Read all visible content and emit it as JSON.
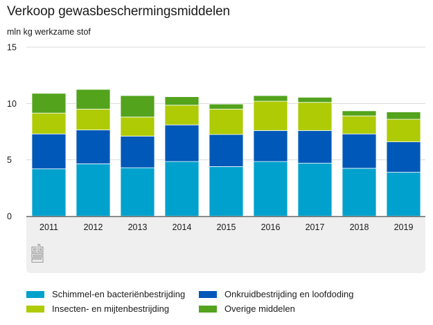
{
  "chart_data": {
    "type": "bar",
    "stacked": true,
    "title": "Verkoop gewasbeschermingsmiddelen",
    "ylabel": "mln kg werkzame stof",
    "xlabel": "",
    "ylim": [
      0,
      15
    ],
    "yticks": [
      0,
      5,
      10,
      15
    ],
    "grid": true,
    "legend_position": "bottom",
    "categories": [
      "2011",
      "2012",
      "2013",
      "2014",
      "2015",
      "2016",
      "2017",
      "2018",
      "2019"
    ],
    "series": [
      {
        "name": "Schimmel-en bacteriënbestrijding",
        "color": "#00a1cd",
        "values": [
          4.2,
          4.65,
          4.3,
          4.85,
          4.4,
          4.85,
          4.7,
          4.25,
          3.9
        ]
      },
      {
        "name": "Onkruidbestrijding en loofdoding",
        "color": "#0058b8",
        "values": [
          3.1,
          3.0,
          2.8,
          3.25,
          2.85,
          2.75,
          2.9,
          3.05,
          2.7
        ]
      },
      {
        "name": "Insecten- en mijtenbestrijding",
        "color": "#afcb05",
        "values": [
          1.85,
          1.85,
          1.7,
          1.75,
          2.25,
          2.6,
          2.5,
          1.6,
          2.0
        ]
      },
      {
        "name": "Overige middelen",
        "color": "#53a31d",
        "values": [
          1.75,
          1.75,
          1.9,
          0.75,
          0.45,
          0.5,
          0.45,
          0.45,
          0.65
        ]
      }
    ]
  },
  "logo": {
    "icon": "cbs-logo-icon",
    "label": "cbs"
  },
  "legend_order": [
    0,
    1,
    2,
    3
  ]
}
